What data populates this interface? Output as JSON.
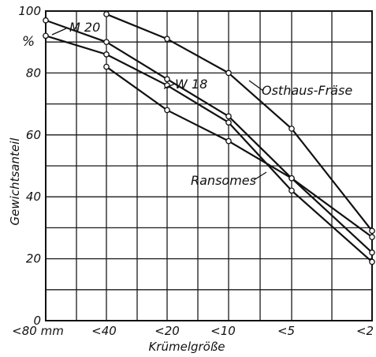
{
  "chart_data": {
    "type": "line",
    "title": "",
    "xlabel": "Krümelgröße",
    "ylabel": "Gewichtsanteil",
    "y_unit": "%",
    "x_unit": "mm",
    "categories": [
      "<80",
      "<40",
      "<20",
      "<10",
      "<5",
      "<2"
    ],
    "ylim": [
      0,
      100
    ],
    "yticks": [
      0,
      20,
      40,
      60,
      80,
      100
    ],
    "grid": true,
    "series": [
      {
        "name": "M 20",
        "values": [
          97,
          90,
          78,
          66,
          46,
          22
        ]
      },
      {
        "name": "W 18",
        "values": [
          92,
          86,
          76,
          64,
          42,
          19
        ]
      },
      {
        "name": "Osthaus-Fräse",
        "values": [
          null,
          99,
          91,
          80,
          62,
          29
        ]
      },
      {
        "name": "Ransomes",
        "values": [
          null,
          82,
          68,
          58,
          46,
          27
        ]
      }
    ]
  }
}
